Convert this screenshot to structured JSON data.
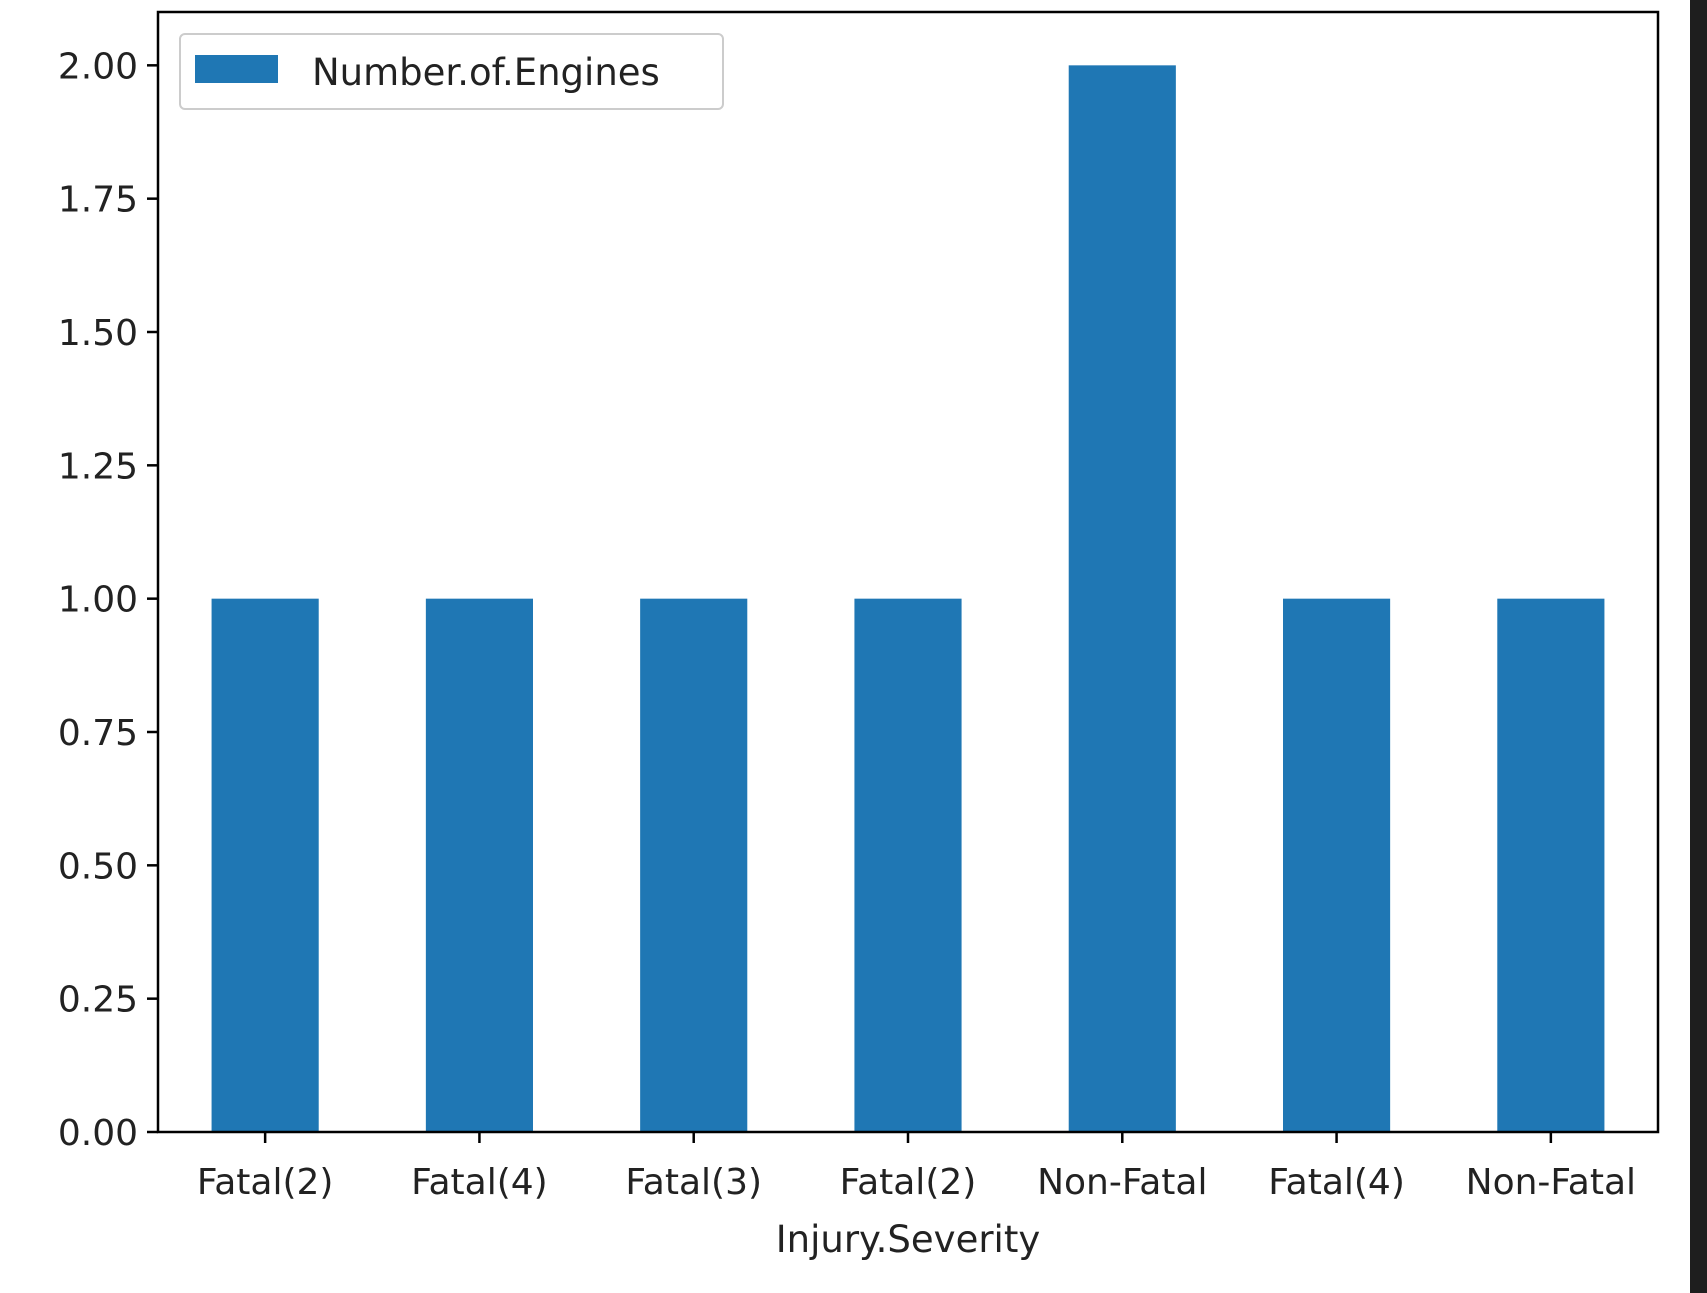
{
  "chart_data": {
    "type": "bar",
    "categories": [
      "Fatal(2)",
      "Fatal(4)",
      "Fatal(3)",
      "Fatal(2)",
      "Non-Fatal",
      "Fatal(4)",
      "Non-Fatal"
    ],
    "series": [
      {
        "name": "Number.of.Engines",
        "values": [
          1,
          1,
          1,
          1,
          2,
          1,
          1
        ],
        "color": "#1f77b4"
      }
    ],
    "xlabel": "Injury.Severity",
    "ylabel": "",
    "ylim": [
      0,
      2.1
    ],
    "yticks": [
      "0.00",
      "0.25",
      "0.50",
      "0.75",
      "1.00",
      "1.25",
      "1.50",
      "1.75",
      "2.00"
    ],
    "grid": false,
    "legend_position": "top-left",
    "figure_background": "#ffffff",
    "page_background": "#1e1e1e"
  }
}
